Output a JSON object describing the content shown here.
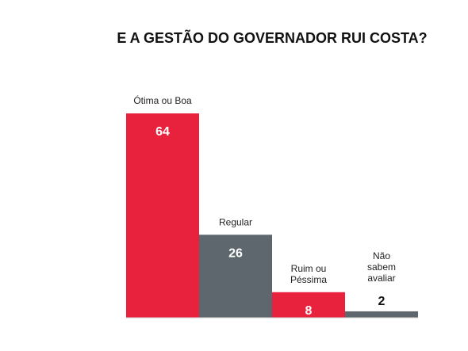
{
  "chart_data": {
    "type": "bar",
    "title": "E A GESTÃO DO GOVERNADOR RUI COSTA?",
    "categories": [
      [
        "Ótima ou Boa"
      ],
      [
        "Regular"
      ],
      [
        "Ruim ou",
        "Péssima"
      ],
      [
        "Não",
        "sabem",
        "avaliar"
      ]
    ],
    "values": [
      64,
      26,
      8,
      2
    ],
    "ylim": [
      0,
      70
    ],
    "colors": [
      "#e8213d",
      "#5e676e",
      "#e8213d",
      "#5e676e"
    ],
    "value_label_colors": [
      "#ffffff",
      "#ffffff",
      "#ffffff",
      "#111111"
    ]
  }
}
